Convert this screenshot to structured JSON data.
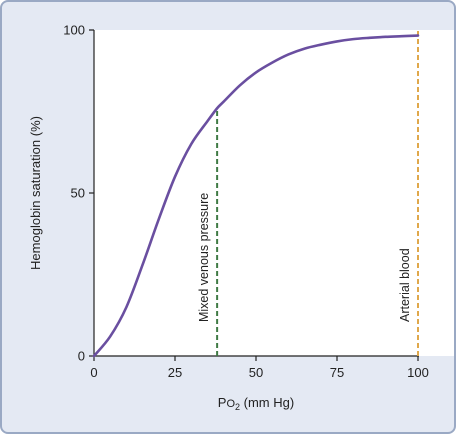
{
  "chart_data": {
    "type": "line",
    "title": "",
    "xlabel_main": "P",
    "xlabel_sub": "O",
    "xlabel_subscript": "2",
    "xlabel_unit": " (mm Hg)",
    "ylabel": "Hemoglobin saturation (%)",
    "xlim": [
      0,
      100
    ],
    "ylim": [
      0,
      100
    ],
    "xticks": [
      0,
      25,
      50,
      75,
      100
    ],
    "xtick_labels": [
      "0",
      "25",
      "50",
      "75",
      "100"
    ],
    "yticks": [
      0,
      50,
      100
    ],
    "ytick_labels": [
      "0",
      "50",
      "100"
    ],
    "grid": false,
    "series": [
      {
        "color": "#6a4fa0",
        "x": [
          0,
          5,
          10,
          15,
          20,
          25,
          30,
          35,
          38,
          40,
          45,
          50,
          55,
          60,
          65,
          70,
          75,
          80,
          85,
          90,
          95,
          100
        ],
        "y": [
          0,
          6,
          15,
          28,
          42,
          55,
          65,
          72,
          76,
          78,
          83,
          87,
          90,
          92.5,
          94.3,
          95.5,
          96.5,
          97.2,
          97.6,
          97.9,
          98.1,
          98.3
        ]
      }
    ],
    "annotations": [
      {
        "label": "Mixed venous pressure",
        "x": 38,
        "y_top": 76,
        "color": "#3f7a44"
      },
      {
        "label": "Arterial blood",
        "x": 100,
        "y_top": 100,
        "color": "#e0a84b"
      }
    ]
  }
}
